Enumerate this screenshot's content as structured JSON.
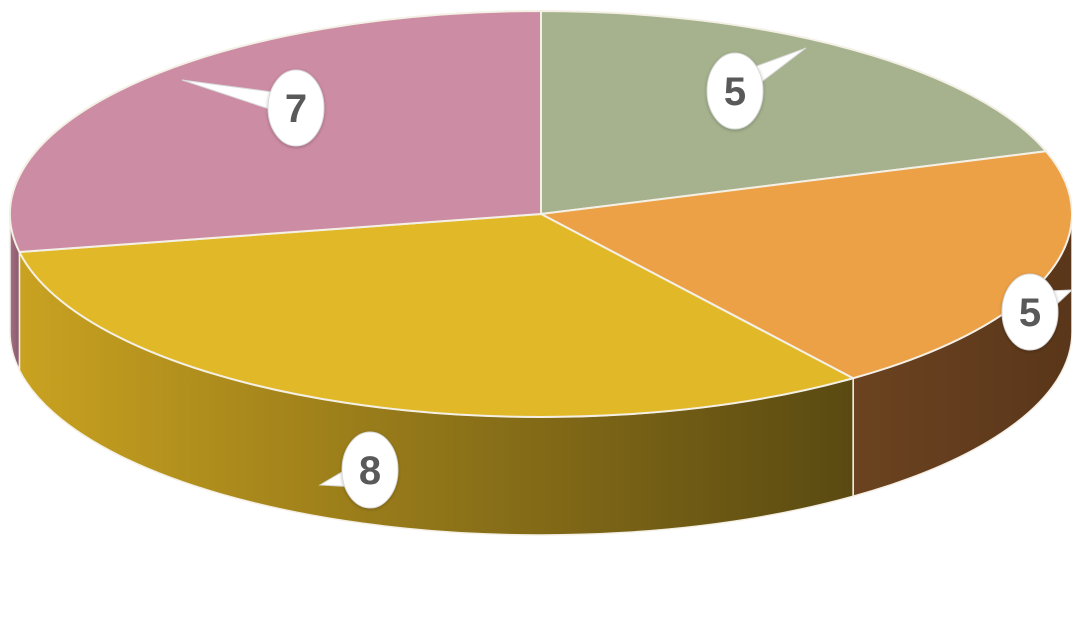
{
  "chart_data": {
    "type": "pie",
    "style": "3d",
    "categories": [
      "",
      "",
      "",
      ""
    ],
    "values": [
      5,
      5,
      8,
      7
    ],
    "data_labels": [
      "5",
      "5",
      "8",
      "7"
    ],
    "colors": [
      "#a5b28d",
      "#eca146",
      "#e1b928",
      "#cc8ca4"
    ],
    "side_colors": [
      "#7e8a66",
      "#623e1e",
      "#8a7018",
      "#9a6578"
    ],
    "title": "",
    "legend": "none"
  }
}
